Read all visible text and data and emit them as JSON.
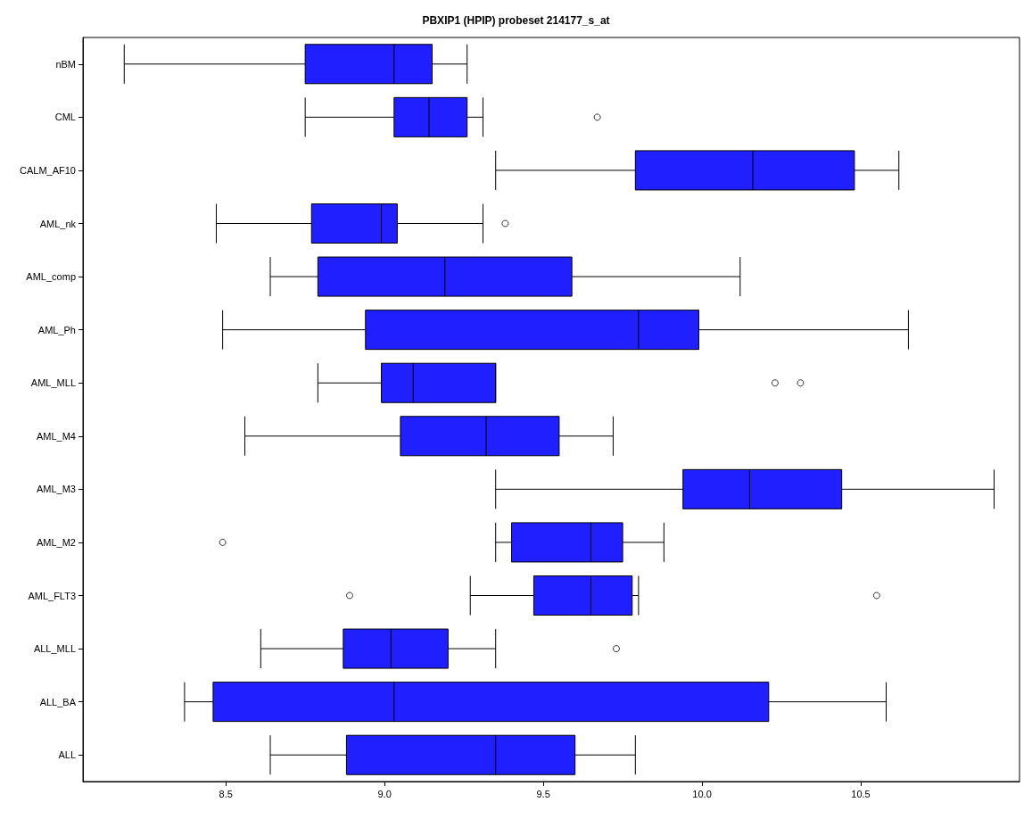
{
  "chart_data": {
    "type": "box",
    "title": "PBXIP1 (HPIP) probeset 214177_s_at",
    "orientation": "horizontal",
    "categories": [
      "nBM",
      "CML",
      "CALM_AF10",
      "AML_nk",
      "AML_comp",
      "AML_Ph",
      "AML_MLL",
      "AML_M4",
      "AML_M3",
      "AML_M2",
      "AML_FLT3",
      "ALL_MLL",
      "ALL_BA",
      "ALL"
    ],
    "color": "#1f1fff",
    "boxes": [
      {
        "low": 8.18,
        "q1": 8.75,
        "median": 9.03,
        "q3": 9.15,
        "high": 9.26
      },
      {
        "low": 8.75,
        "q1": 9.03,
        "median": 9.14,
        "q3": 9.26,
        "high": 9.31,
        "outliers": [
          9.67
        ]
      },
      {
        "low": 9.35,
        "q1": 9.79,
        "median": 10.16,
        "q3": 10.48,
        "high": 10.62
      },
      {
        "low": 8.47,
        "q1": 8.77,
        "median": 8.99,
        "q3": 9.04,
        "high": 9.31,
        "outliers": [
          9.38
        ]
      },
      {
        "low": 8.64,
        "q1": 8.79,
        "median": 9.19,
        "q3": 9.59,
        "high": 10.12
      },
      {
        "low": 8.49,
        "q1": 8.94,
        "median": 9.8,
        "q3": 9.99,
        "high": 10.65
      },
      {
        "low": 8.79,
        "q1": 8.99,
        "median": 9.09,
        "q3": 9.35,
        "high": 9.35,
        "outliers": [
          10.23,
          10.31
        ]
      },
      {
        "low": 8.56,
        "q1": 9.05,
        "median": 9.32,
        "q3": 9.55,
        "high": 9.72
      },
      {
        "low": 9.35,
        "q1": 9.94,
        "median": 10.15,
        "q3": 10.44,
        "high": 10.92
      },
      {
        "low": 9.35,
        "q1": 9.4,
        "median": 9.65,
        "q3": 9.75,
        "high": 9.88,
        "outliers": [
          8.49
        ]
      },
      {
        "low": 9.27,
        "q1": 9.47,
        "median": 9.65,
        "q3": 9.78,
        "high": 9.8,
        "outliers": [
          8.89,
          10.55
        ]
      },
      {
        "low": 8.61,
        "q1": 8.87,
        "median": 9.02,
        "q3": 9.2,
        "high": 9.35,
        "outliers": [
          9.73
        ]
      },
      {
        "low": 8.37,
        "q1": 8.46,
        "median": 9.03,
        "q3": 10.21,
        "high": 10.58
      },
      {
        "low": 8.64,
        "q1": 8.88,
        "median": 9.35,
        "q3": 9.6,
        "high": 9.79
      }
    ],
    "xlim": [
      8.05,
      11.0
    ],
    "xticks": [
      8.5,
      {
        "value": 9,
        "label": "9.0"
      },
      9.5,
      {
        "value": 10,
        "label": "10.0"
      },
      10.5
    ],
    "grid": false
  }
}
